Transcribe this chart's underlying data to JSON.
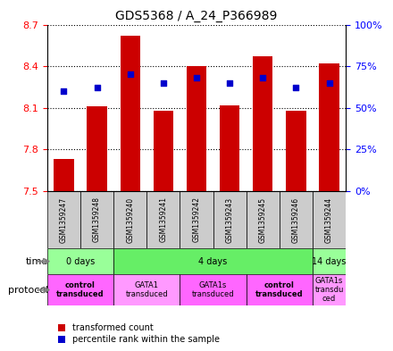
{
  "title": "GDS5368 / A_24_P366989",
  "samples": [
    "GSM1359247",
    "GSM1359248",
    "GSM1359240",
    "GSM1359241",
    "GSM1359242",
    "GSM1359243",
    "GSM1359245",
    "GSM1359246",
    "GSM1359244"
  ],
  "transformed_counts": [
    7.73,
    8.11,
    8.62,
    8.08,
    8.4,
    8.12,
    8.47,
    8.08,
    8.42
  ],
  "percentile_ranks": [
    60,
    62,
    70,
    65,
    68,
    65,
    68,
    62,
    65
  ],
  "bar_bottom": 7.5,
  "ylim": [
    7.5,
    8.7
  ],
  "yticks": [
    7.5,
    7.8,
    8.1,
    8.4,
    8.7
  ],
  "y2lim": [
    0,
    100
  ],
  "y2ticks": [
    0,
    25,
    50,
    75,
    100
  ],
  "y2ticklabels": [
    "0%",
    "25%",
    "50%",
    "75%",
    "100%"
  ],
  "bar_color": "#cc0000",
  "dot_color": "#0000cc",
  "bar_width": 0.6,
  "time_groups": [
    {
      "label": "0 days",
      "start": 0,
      "end": 2,
      "color": "#99ff99"
    },
    {
      "label": "4 days",
      "start": 2,
      "end": 8,
      "color": "#66ee66"
    },
    {
      "label": "14 days",
      "start": 8,
      "end": 9,
      "color": "#99ff99"
    }
  ],
  "protocol_groups": [
    {
      "label": "control\ntransduced",
      "start": 0,
      "end": 2,
      "color": "#ff66ff",
      "bold": true
    },
    {
      "label": "GATA1\ntransduced",
      "start": 2,
      "end": 4,
      "color": "#ff99ff",
      "bold": false
    },
    {
      "label": "GATA1s\ntransduced",
      "start": 4,
      "end": 6,
      "color": "#ff66ff",
      "bold": false
    },
    {
      "label": "control\ntransduced",
      "start": 6,
      "end": 8,
      "color": "#ff66ff",
      "bold": true
    },
    {
      "label": "GATA1s\ntransdu\nced",
      "start": 8,
      "end": 9,
      "color": "#ff99ff",
      "bold": false
    }
  ],
  "sample_bg_color": "#cccccc",
  "legend_items": [
    {
      "color": "#cc0000",
      "label": "transformed count"
    },
    {
      "color": "#0000cc",
      "label": "percentile rank within the sample"
    }
  ]
}
